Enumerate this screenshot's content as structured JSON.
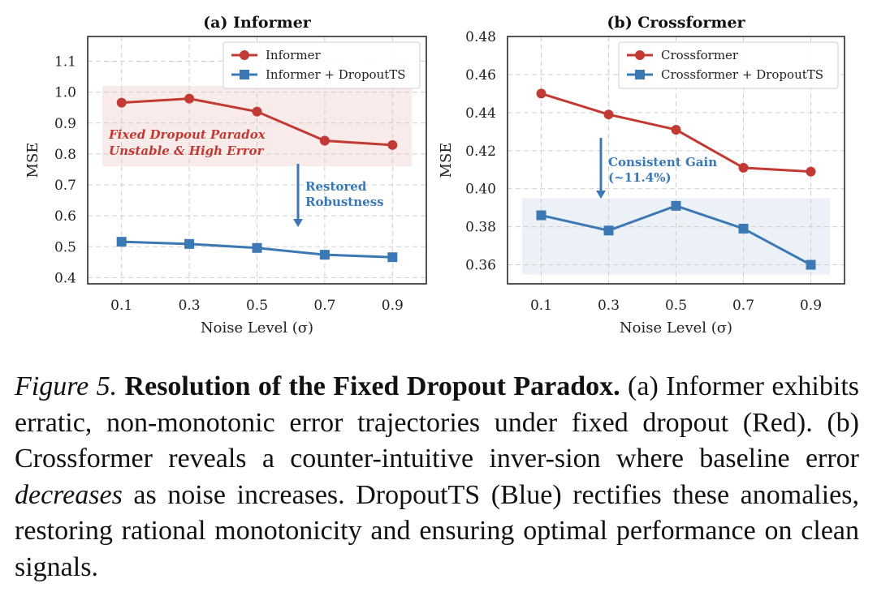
{
  "chart_data": [
    {
      "type": "line",
      "title": "(a) Informer",
      "xlabel": "Noise Level (σ)",
      "ylabel": "MSE",
      "x": [
        0.1,
        0.3,
        0.5,
        0.7,
        0.9
      ],
      "x_tick_labels": [
        "0.1",
        "0.3",
        "0.5",
        "0.7",
        "0.9"
      ],
      "y_ticks": [
        0.4,
        0.5,
        0.6,
        0.7,
        0.8,
        0.9,
        1.0,
        1.1
      ],
      "y_tick_labels": [
        "0.4",
        "0.5",
        "0.6",
        "0.7",
        "0.8",
        "0.9",
        "1.0",
        "1.1"
      ],
      "xlim": [
        -0.0,
        1.0
      ],
      "ylim": [
        0.38,
        1.18
      ],
      "grid": true,
      "legend_position": "top-right",
      "series": [
        {
          "name": "Informer",
          "values": [
            0.966,
            0.979,
            0.937,
            0.843,
            0.829
          ],
          "color": "#c23a34",
          "marker": "circle"
        },
        {
          "name": "Informer + DropoutTS",
          "values": [
            0.516,
            0.509,
            0.496,
            0.474,
            0.466
          ],
          "color": "#3b78b4",
          "marker": "square"
        }
      ],
      "shaded_band": {
        "y": [
          0.76,
          1.02
        ],
        "color": "#c23a34"
      },
      "annotations": [
        {
          "text": "Fixed Dropout Paradox",
          "color": "#c23a34"
        },
        {
          "text": "Unstable & High Error",
          "color": "#c23a34"
        },
        {
          "text": "Restored",
          "color": "#3b78b4"
        },
        {
          "text": "Robustness",
          "color": "#3b78b4"
        }
      ]
    },
    {
      "type": "line",
      "title": "(b) Crossformer",
      "xlabel": "Noise Level (σ)",
      "ylabel": "MSE",
      "x": [
        0.1,
        0.3,
        0.5,
        0.7,
        0.9
      ],
      "x_tick_labels": [
        "0.1",
        "0.3",
        "0.5",
        "0.7",
        "0.9"
      ],
      "y_ticks": [
        0.36,
        0.38,
        0.4,
        0.42,
        0.44,
        0.46,
        0.48
      ],
      "y_tick_labels": [
        "0.36",
        "0.38",
        "0.40",
        "0.42",
        "0.44",
        "0.46",
        "0.48"
      ],
      "xlim": [
        -0.0,
        1.0
      ],
      "ylim": [
        0.35,
        0.48
      ],
      "grid": true,
      "legend_position": "top-right",
      "series": [
        {
          "name": "Crossformer",
          "values": [
            0.45,
            0.439,
            0.431,
            0.411,
            0.409
          ],
          "color": "#c23a34",
          "marker": "circle"
        },
        {
          "name": "Crossformer + DropoutTS",
          "values": [
            0.386,
            0.378,
            0.391,
            0.379,
            0.36
          ],
          "color": "#3b78b4",
          "marker": "square"
        }
      ],
      "shaded_band": {
        "y": [
          0.355,
          0.395
        ],
        "color": "#3b78b4"
      },
      "annotations": [
        {
          "text": "Consistent Gain",
          "color": "#3b78b4"
        },
        {
          "text": "(~11.4%)",
          "color": "#3b78b4"
        }
      ]
    }
  ],
  "caption": {
    "lead": "Figure 5.",
    "title": "Resolution of the Fixed Dropout Paradox.",
    "part1": "(a) Informer exhibits erratic, non-monotonic error trajectories under fixed dropout (Red). (b) Crossformer reveals a counter-intuitive inver-sion where baseline error",
    "emph": "decreases",
    "part2": "as noise increases. DropoutTS (Blue) rectifies these anomalies, restoring rational monotonicity and ensuring optimal performance on clean signals."
  }
}
